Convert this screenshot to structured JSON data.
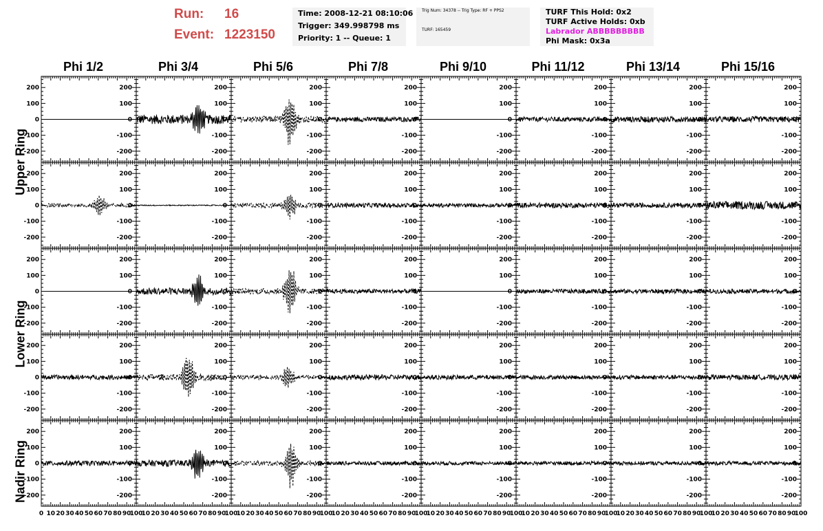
{
  "header": {
    "run_label": "Run:",
    "run_value": "16",
    "event_label": "Event:",
    "event_value": "1223150",
    "time": "Time: 2008-12-21 08:10:06",
    "trigger": "Trigger: 349.998798 ms",
    "priority": "Priority: 1 -- Queue: 1",
    "trig_num": "Trig Num: 34378 -- Trig Type: RF + PPS2",
    "turf": "TURF: 165459",
    "turf_this_hold": "TURF This Hold: 0x2",
    "turf_active_holds": "TURF Active Holds: 0xb",
    "labrador": "Labrador ABBBBBBBBB",
    "phi_mask": "Phi Mask: 0x3a"
  },
  "colors": {
    "run": "#d04a4a",
    "labrador": "#e020e0",
    "box": "#f2f2f2",
    "trace": "#000000"
  },
  "chart_data": {
    "type": "line",
    "columns": [
      "Phi 1/2",
      "Phi 3/4",
      "Phi 5/6",
      "Phi 7/8",
      "Phi 9/10",
      "Phi 11/12",
      "Phi 13/14",
      "Phi 15/16"
    ],
    "ring_labels": [
      "Upper Ring",
      "Lower Ring",
      "Nadir Ring"
    ],
    "y_ticks": [
      "200",
      "100",
      "0",
      "-100",
      "-200"
    ],
    "y_tick_values": [
      200,
      100,
      0,
      -100,
      -200
    ],
    "ylim": [
      -270,
      270
    ],
    "x_ticks": [
      "0",
      "10",
      "20",
      "30",
      "40",
      "50",
      "60",
      "70",
      "80",
      "90",
      "100"
    ],
    "xlim": [
      0,
      100
    ],
    "panels": [
      [
        {
          "style": "flat",
          "amp": 0,
          "burst": 0,
          "center": 0,
          "dashed": false
        },
        {
          "style": "noise",
          "amp": 30,
          "burst": 120,
          "center": 65,
          "dashed": false
        },
        {
          "style": "noise",
          "amp": 20,
          "burst": 180,
          "center": 62,
          "dashed": true
        },
        {
          "style": "noise",
          "amp": 15,
          "burst": 0,
          "center": 50,
          "dashed": false
        },
        {
          "style": "flat",
          "amp": 0,
          "burst": 0,
          "center": 0,
          "dashed": false
        },
        {
          "style": "noise",
          "amp": 15,
          "burst": 0,
          "center": 50,
          "dashed": false
        },
        {
          "style": "noise",
          "amp": 18,
          "burst": 0,
          "center": 50,
          "dashed": false
        },
        {
          "style": "noise",
          "amp": 18,
          "burst": 0,
          "center": 50,
          "dashed": false
        }
      ],
      [
        {
          "style": "noise",
          "amp": 12,
          "burst": 70,
          "center": 62,
          "dashed": true
        },
        {
          "style": "noise",
          "amp": 3,
          "burst": 0,
          "center": 50,
          "dashed": false
        },
        {
          "style": "noise",
          "amp": 15,
          "burst": 90,
          "center": 62,
          "dashed": true
        },
        {
          "style": "noise",
          "amp": 14,
          "burst": 0,
          "center": 50,
          "dashed": false
        },
        {
          "style": "noise",
          "amp": 12,
          "burst": 0,
          "center": 50,
          "dashed": false
        },
        {
          "style": "noise",
          "amp": 16,
          "burst": 0,
          "center": 50,
          "dashed": false
        },
        {
          "style": "noise",
          "amp": 15,
          "burst": 0,
          "center": 50,
          "dashed": false
        },
        {
          "style": "noise",
          "amp": 25,
          "burst": 0,
          "center": 50,
          "dashed": false
        }
      ],
      [
        {
          "style": "flat",
          "amp": 0,
          "burst": 0,
          "center": 0,
          "dashed": false
        },
        {
          "style": "noise",
          "amp": 22,
          "burst": 120,
          "center": 65,
          "dashed": false
        },
        {
          "style": "noise",
          "amp": 18,
          "burst": 180,
          "center": 62,
          "dashed": true
        },
        {
          "style": "noise",
          "amp": 14,
          "burst": 0,
          "center": 50,
          "dashed": false
        },
        {
          "style": "flat",
          "amp": 0,
          "burst": 0,
          "center": 0,
          "dashed": false
        },
        {
          "style": "noise",
          "amp": 14,
          "burst": 0,
          "center": 50,
          "dashed": false
        },
        {
          "style": "noise",
          "amp": 14,
          "burst": 0,
          "center": 50,
          "dashed": false
        },
        {
          "style": "noise",
          "amp": 14,
          "burst": 0,
          "center": 50,
          "dashed": false
        }
      ],
      [
        {
          "style": "noise",
          "amp": 14,
          "burst": 0,
          "center": 50,
          "dashed": false
        },
        {
          "style": "noise",
          "amp": 20,
          "burst": 190,
          "center": 55,
          "dashed": true
        },
        {
          "style": "noise",
          "amp": 14,
          "burst": 80,
          "center": 60,
          "dashed": true
        },
        {
          "style": "noise",
          "amp": 16,
          "burst": 0,
          "center": 50,
          "dashed": false
        },
        {
          "style": "noise",
          "amp": 14,
          "burst": 0,
          "center": 50,
          "dashed": false
        },
        {
          "style": "noise",
          "amp": 13,
          "burst": 0,
          "center": 50,
          "dashed": false
        },
        {
          "style": "noise",
          "amp": 14,
          "burst": 0,
          "center": 50,
          "dashed": false
        },
        {
          "style": "noise",
          "amp": 16,
          "burst": 0,
          "center": 50,
          "dashed": false
        }
      ],
      [
        {
          "style": "noise",
          "amp": 16,
          "burst": 0,
          "center": 50,
          "dashed": false
        },
        {
          "style": "noise",
          "amp": 20,
          "burst": 130,
          "center": 65,
          "dashed": false
        },
        {
          "style": "noise",
          "amp": 15,
          "burst": 160,
          "center": 63,
          "dashed": true
        },
        {
          "style": "noise",
          "amp": 12,
          "burst": 0,
          "center": 50,
          "dashed": false
        },
        {
          "style": "noise",
          "amp": 12,
          "burst": 0,
          "center": 50,
          "dashed": false
        },
        {
          "style": "noise",
          "amp": 12,
          "burst": 0,
          "center": 50,
          "dashed": false
        },
        {
          "style": "noise",
          "amp": 12,
          "burst": 0,
          "center": 50,
          "dashed": false
        },
        {
          "style": "noise",
          "amp": 12,
          "burst": 0,
          "center": 50,
          "dashed": false
        }
      ]
    ]
  }
}
